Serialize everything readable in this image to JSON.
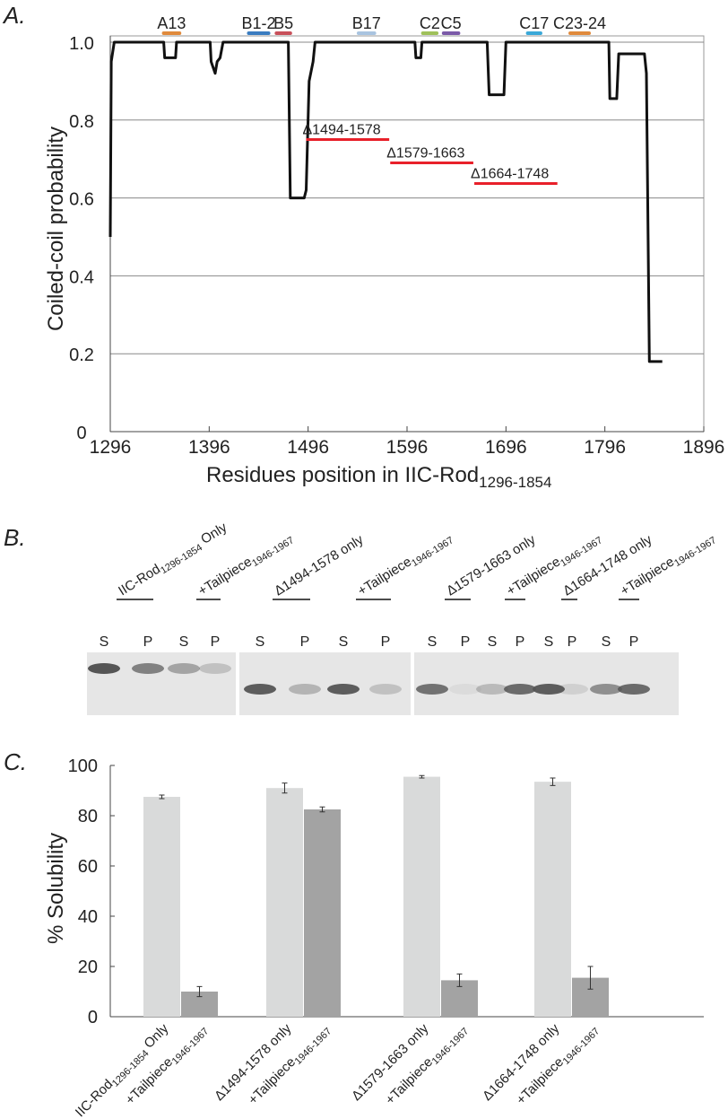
{
  "chart_data": [
    {
      "type": "line",
      "panel_label": "A.",
      "ylabel": "Coiled-coil probability",
      "xlabel": [
        "Residues position in IIC-Rod",
        "1296-1854"
      ],
      "color": "#111111",
      "x": [
        1296,
        1297,
        1300,
        1350,
        1351,
        1362,
        1363,
        1397,
        1398,
        1402,
        1404,
        1407,
        1410,
        1476,
        1478,
        1492,
        1494,
        1497,
        1501,
        1503,
        1604,
        1605,
        1610,
        1611,
        1677,
        1679,
        1694,
        1696,
        1800,
        1801,
        1808,
        1810,
        1836,
        1838,
        1841,
        1854
      ],
      "values": [
        0.5,
        0.95,
        1.0,
        1.0,
        0.96,
        0.96,
        1.0,
        1.0,
        0.95,
        0.92,
        0.95,
        0.96,
        1.0,
        1.0,
        0.6,
        0.6,
        0.62,
        0.9,
        0.95,
        1.0,
        1.0,
        0.96,
        0.96,
        1.0,
        1.0,
        0.865,
        0.865,
        1.0,
        1.0,
        0.855,
        0.855,
        0.97,
        0.97,
        0.92,
        0.18,
        0.18
      ],
      "xlim": [
        1296,
        1896
      ],
      "xticks": [
        1296,
        1396,
        1496,
        1596,
        1696,
        1796,
        1896
      ],
      "ylim": [
        0,
        1
      ],
      "yticks": [
        0,
        0.2,
        0.4,
        0.6,
        0.8,
        {
          "value": 1,
          "label": "1.0"
        }
      ],
      "grid": true,
      "annotations": [
        {
          "text": "A13",
          "color": "#e08a3c",
          "x": [
            1350,
            1366
          ]
        },
        {
          "text": "B1-2",
          "color": "#3a7cc0",
          "x": [
            1436,
            1456
          ]
        },
        {
          "text": "B5",
          "color": "#c8505a",
          "x": [
            1464,
            1478
          ]
        },
        {
          "text": "B17",
          "color": "#a9c4e0",
          "x": [
            1547,
            1563
          ]
        },
        {
          "text": "C2",
          "color": "#9fc05a",
          "x": [
            1612,
            1626
          ]
        },
        {
          "text": "C5",
          "color": "#7b5aa8",
          "x": [
            1633,
            1648
          ]
        },
        {
          "text": "C17",
          "color": "#3aa8d8",
          "x": [
            1718,
            1731
          ]
        },
        {
          "text": "C23-24",
          "color": "#e08a3c",
          "x": [
            1761,
            1780
          ]
        }
      ],
      "deletions": [
        {
          "text": "Δ1494-1578",
          "color": "#e8202a",
          "x": [
            1494,
            1578
          ],
          "y": 0.75
        },
        {
          "text": "Δ1579-1663",
          "color": "#e8202a",
          "x": [
            1579,
            1663
          ],
          "y": 0.69
        },
        {
          "text": "Δ1664-1748",
          "color": "#e8202a",
          "x": [
            1664,
            1748
          ],
          "y": 0.637
        }
      ]
    },
    {
      "type": "bar",
      "panel_label": "C.",
      "ylabel": "% Solubility",
      "categories": [
        [
          "IIC-Rod",
          "1296-1854",
          " Only"
        ],
        [
          "+Tailpiece",
          "1946-1967"
        ],
        [
          "Δ1494-1578 only"
        ],
        [
          "+Tailpiece",
          "1946-1967"
        ],
        [
          "Δ1579-1663 only"
        ],
        [
          "+Tailpiece",
          "1946-1967"
        ],
        [
          "Δ1664-1748 only"
        ],
        [
          "+Tailpiece",
          "1946-1967"
        ]
      ],
      "values": [
        87.5,
        10,
        91,
        82.5,
        95.5,
        14.5,
        93.5,
        15.5
      ],
      "errors": [
        0.7,
        2,
        2,
        1,
        0.5,
        2.5,
        1.5,
        4.5
      ],
      "colors": [
        "#d9dada",
        "#a3a3a3",
        "#d9dada",
        "#a3a3a3",
        "#d9dada",
        "#a3a3a3",
        "#d9dada",
        "#a3a3a3"
      ],
      "ylim": [
        0,
        100
      ],
      "yticks": [
        0,
        20,
        40,
        60,
        80,
        100
      ]
    }
  ],
  "gel": {
    "panel_label": "B.",
    "fractions": [
      "S",
      "P"
    ],
    "lanes": [
      [
        "IIC-Rod",
        "1296-1854",
        " Only"
      ],
      [
        "+Tailpiece",
        "1946-1967"
      ],
      [
        "Δ1494-1578 only"
      ],
      [
        "+Tailpiece",
        "1946-1967"
      ],
      [
        "Δ1579-1663 only"
      ],
      [
        "+Tailpiece",
        "1946-1967"
      ],
      [
        "Δ1664-1748 only"
      ],
      [
        "+Tailpiece",
        "1946-1967"
      ]
    ]
  }
}
